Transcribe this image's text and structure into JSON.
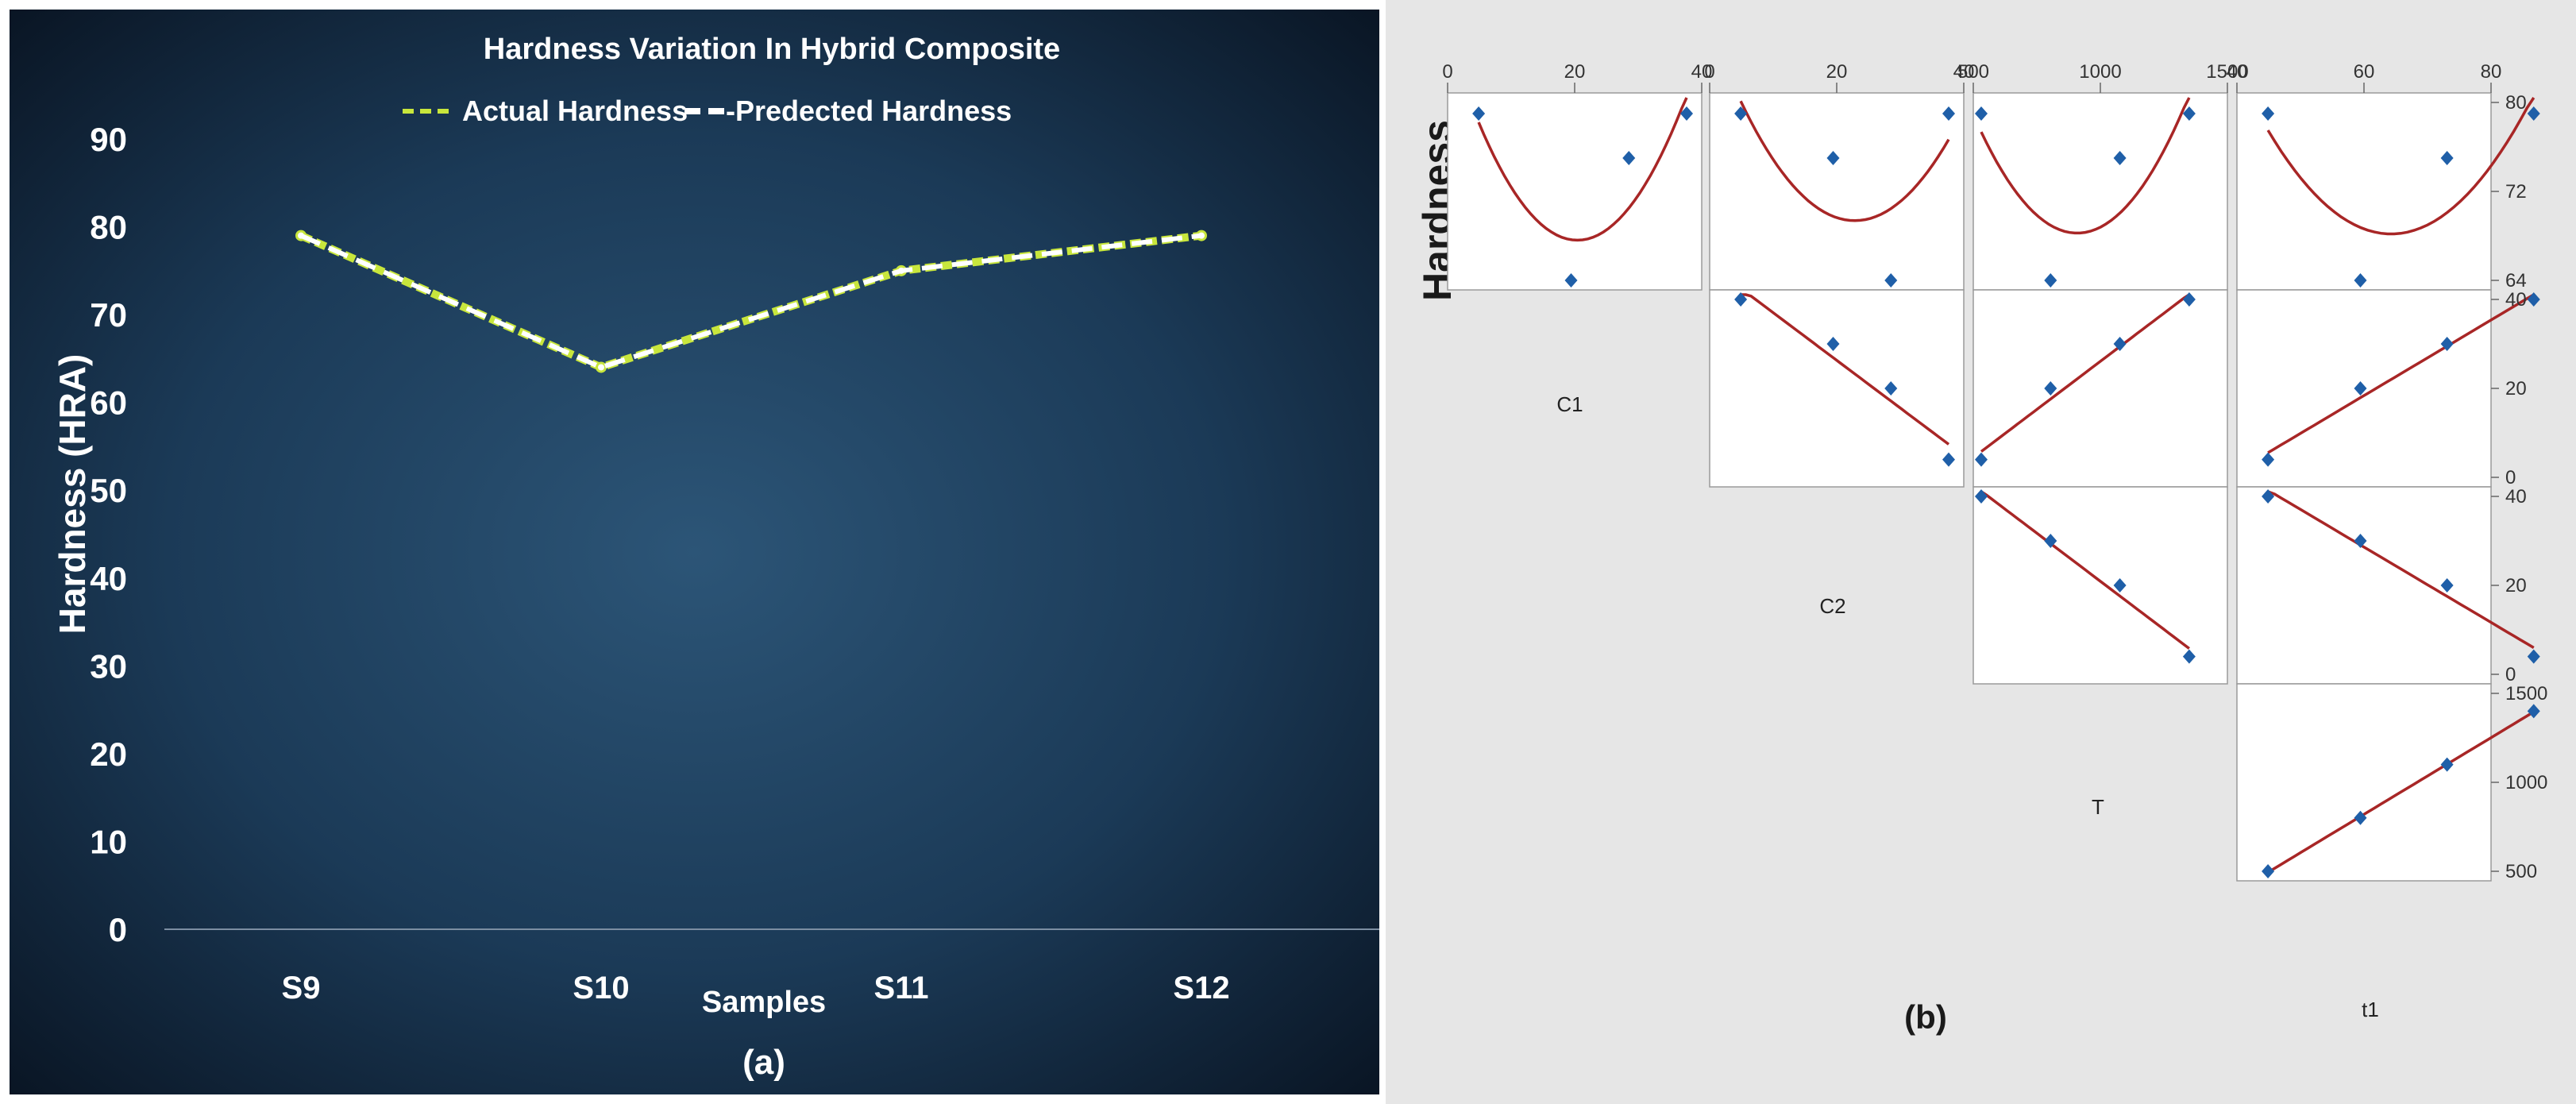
{
  "chart_data": [
    {
      "type": "line",
      "title": "Hardness Variation In Hybrid Composite",
      "xlabel": "Samples",
      "ylabel": "Hardness (HRA)",
      "panel_label": "(a)",
      "categories": [
        "S9",
        "S10",
        "S11",
        "S12"
      ],
      "ylim": [
        0,
        90
      ],
      "yticks": [
        "0",
        "10",
        "20",
        "30",
        "40",
        "50",
        "60",
        "70",
        "80",
        "90"
      ],
      "legend": "top",
      "grid": false,
      "series": [
        {
          "name": "Actual Hardness",
          "values": [
            79,
            64,
            75,
            79
          ],
          "color": "#c8e63c"
        },
        {
          "name": "-Predected Hardness",
          "values": [
            79,
            64,
            75,
            79
          ],
          "color": "#ffffff"
        }
      ]
    },
    {
      "type": "scatter",
      "subtype": "matrix-plot",
      "ylabel": "Hardness",
      "panel_label": "(b)",
      "variables": [
        "C1",
        "C2",
        "T",
        "t1"
      ],
      "top_axis": {
        "C1": [
          "0",
          "20",
          "40"
        ],
        "C2": [
          "0",
          "20",
          "40"
        ],
        "T": [
          "500",
          "1000",
          "1500"
        ],
        "t1": [
          "40",
          "60",
          "80"
        ]
      },
      "right_axis": {
        "Hardness": [
          "80",
          "72",
          "64"
        ],
        "C1": [
          "40",
          "20",
          "0"
        ],
        "C2": [
          "40",
          "20",
          "0"
        ],
        "T": [
          "1500",
          "1000",
          "500"
        ]
      },
      "points": {
        "C1": [
          4,
          20,
          30,
          40
        ],
        "C2": [
          40,
          30,
          20,
          4
        ],
        "T": [
          500,
          800,
          1100,
          1400
        ],
        "t1": [
          44,
          60,
          75,
          90
        ],
        "Hardness": [
          79,
          64,
          75,
          79
        ]
      },
      "colors": {
        "point": "#1f5fa8",
        "fit": "#a82626",
        "background": "#e6e6e6"
      }
    }
  ]
}
